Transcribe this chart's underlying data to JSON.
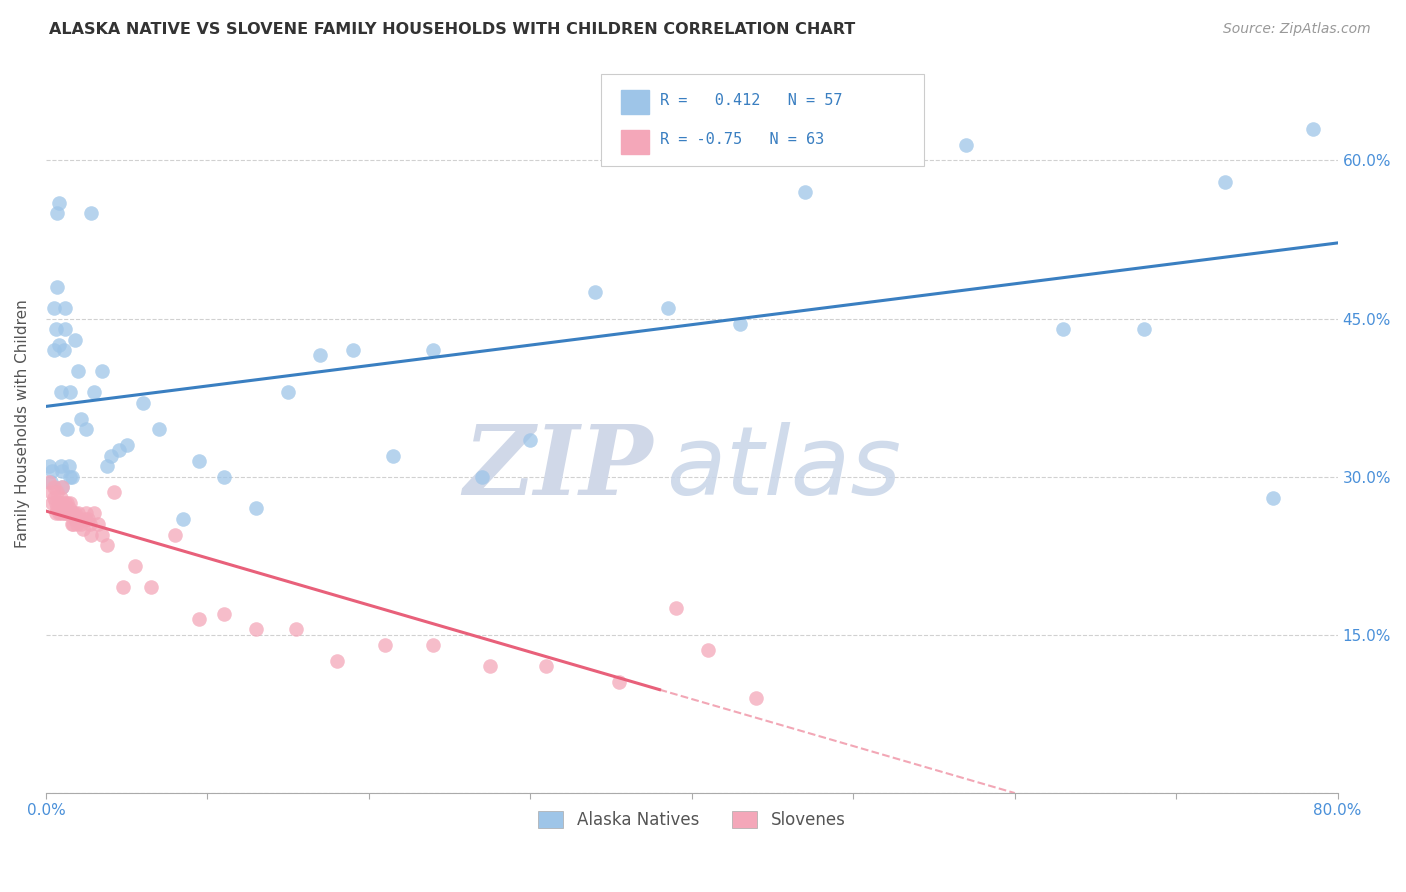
{
  "title": "ALASKA NATIVE VS SLOVENE FAMILY HOUSEHOLDS WITH CHILDREN CORRELATION CHART",
  "source": "Source: ZipAtlas.com",
  "ylabel": "Family Households with Children",
  "r_alaska": 0.412,
  "n_alaska": 57,
  "r_slovene": -0.75,
  "n_slovene": 63,
  "xlim": [
    0.0,
    0.8
  ],
  "ylim": [
    0.0,
    0.7
  ],
  "color_alaska": "#9EC5E8",
  "color_slovene": "#F4A7B9",
  "line_color_alaska": "#3A7FC1",
  "line_color_slovene": "#E8607A",
  "watermark_zip": "ZIP",
  "watermark_atlas": "atlas",
  "background_color": "#FFFFFF",
  "alaska_scatter_x": [
    0.002,
    0.003,
    0.004,
    0.005,
    0.005,
    0.006,
    0.007,
    0.007,
    0.008,
    0.008,
    0.009,
    0.009,
    0.01,
    0.01,
    0.011,
    0.012,
    0.012,
    0.013,
    0.014,
    0.015,
    0.015,
    0.016,
    0.018,
    0.02,
    0.022,
    0.025,
    0.028,
    0.03,
    0.035,
    0.038,
    0.04,
    0.045,
    0.05,
    0.06,
    0.07,
    0.085,
    0.095,
    0.11,
    0.13,
    0.15,
    0.17,
    0.19,
    0.215,
    0.24,
    0.27,
    0.3,
    0.34,
    0.385,
    0.43,
    0.47,
    0.52,
    0.57,
    0.63,
    0.68,
    0.73,
    0.76,
    0.785
  ],
  "alaska_scatter_y": [
    0.31,
    0.295,
    0.305,
    0.42,
    0.46,
    0.44,
    0.48,
    0.55,
    0.56,
    0.425,
    0.31,
    0.38,
    0.29,
    0.305,
    0.42,
    0.44,
    0.46,
    0.345,
    0.31,
    0.38,
    0.3,
    0.3,
    0.43,
    0.4,
    0.355,
    0.345,
    0.55,
    0.38,
    0.4,
    0.31,
    0.32,
    0.325,
    0.33,
    0.37,
    0.345,
    0.26,
    0.315,
    0.3,
    0.27,
    0.38,
    0.415,
    0.42,
    0.32,
    0.42,
    0.3,
    0.335,
    0.475,
    0.46,
    0.445,
    0.57,
    0.615,
    0.615,
    0.44,
    0.44,
    0.58,
    0.28,
    0.63
  ],
  "slovene_scatter_x": [
    0.002,
    0.003,
    0.004,
    0.005,
    0.005,
    0.006,
    0.006,
    0.007,
    0.007,
    0.008,
    0.008,
    0.009,
    0.009,
    0.01,
    0.01,
    0.011,
    0.011,
    0.012,
    0.012,
    0.013,
    0.013,
    0.014,
    0.014,
    0.015,
    0.015,
    0.016,
    0.016,
    0.017,
    0.017,
    0.018,
    0.018,
    0.019,
    0.02,
    0.021,
    0.022,
    0.023,
    0.024,
    0.025,
    0.026,
    0.027,
    0.028,
    0.03,
    0.032,
    0.035,
    0.038,
    0.042,
    0.048,
    0.055,
    0.065,
    0.08,
    0.095,
    0.11,
    0.13,
    0.155,
    0.18,
    0.21,
    0.24,
    0.275,
    0.31,
    0.355,
    0.39,
    0.41,
    0.44
  ],
  "slovene_scatter_y": [
    0.295,
    0.285,
    0.275,
    0.28,
    0.29,
    0.265,
    0.275,
    0.27,
    0.285,
    0.265,
    0.275,
    0.265,
    0.28,
    0.275,
    0.29,
    0.27,
    0.265,
    0.275,
    0.265,
    0.265,
    0.275,
    0.27,
    0.265,
    0.265,
    0.275,
    0.265,
    0.255,
    0.265,
    0.255,
    0.26,
    0.265,
    0.255,
    0.265,
    0.26,
    0.255,
    0.25,
    0.26,
    0.265,
    0.26,
    0.255,
    0.245,
    0.265,
    0.255,
    0.245,
    0.235,
    0.285,
    0.195,
    0.215,
    0.195,
    0.245,
    0.165,
    0.17,
    0.155,
    0.155,
    0.125,
    0.14,
    0.14,
    0.12,
    0.12,
    0.105,
    0.175,
    0.135,
    0.09
  ],
  "slovene_line_x_solid_end": 0.38,
  "slovene_line_x_dashed_end": 0.6
}
